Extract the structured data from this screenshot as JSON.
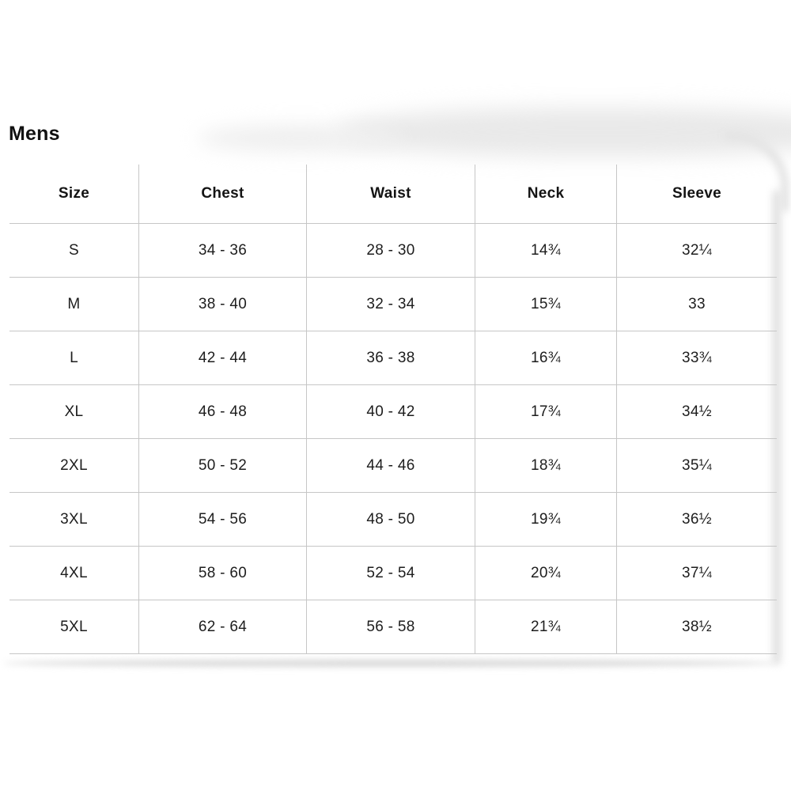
{
  "page": {
    "title": "Mens"
  },
  "table": {
    "columns": [
      "Size",
      "Chest",
      "Waist",
      "Neck",
      "Sleeve"
    ],
    "rows": [
      [
        "S",
        "34 - 36",
        "28 - 30",
        "14¾",
        "32¼"
      ],
      [
        "M",
        "38 - 40",
        "32 - 34",
        "15¾",
        "33"
      ],
      [
        "L",
        "42 - 44",
        "36 - 38",
        "16¾",
        "33¾"
      ],
      [
        "XL",
        "46 - 48",
        "40 - 42",
        "17¾",
        "34½"
      ],
      [
        "2XL",
        "50 - 52",
        "44 - 46",
        "18¾",
        "35¼"
      ],
      [
        "3XL",
        "54 - 56",
        "48 - 50",
        "19¾",
        "36½"
      ],
      [
        "4XL",
        "58 - 60",
        "52 - 54",
        "20¾",
        "37¼"
      ],
      [
        "5XL",
        "62 - 64",
        "56 - 58",
        "21¾",
        "38½"
      ]
    ]
  },
  "colors": {
    "text": "#1d1d1d",
    "grid_line": "#c6c6c6",
    "background": "#ffffff",
    "shadow": "#e3e3e3"
  }
}
